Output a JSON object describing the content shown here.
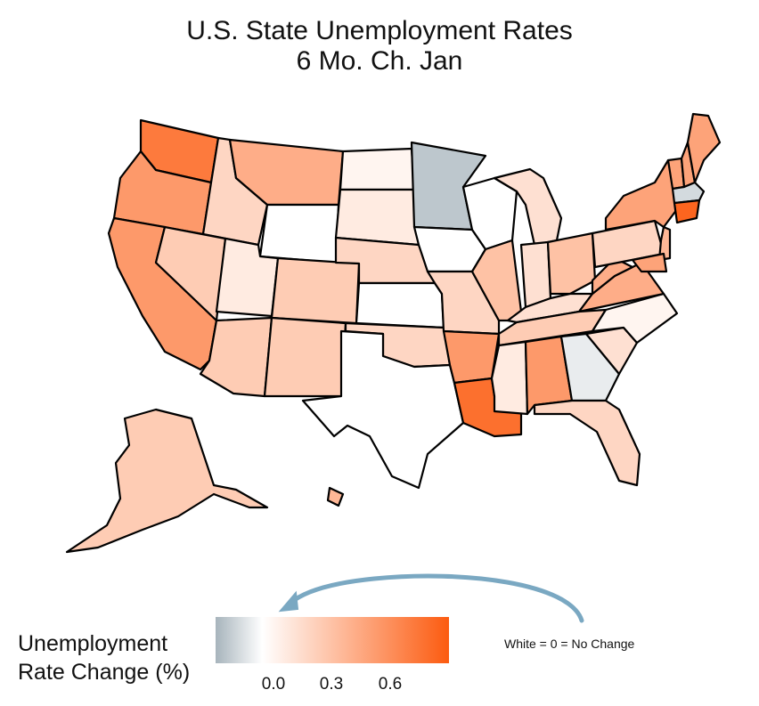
{
  "title_line1": "U.S. State Unemployment Rates",
  "title_line2": "6 Mo. Ch.   Jan",
  "legend": {
    "title_line1": "Unemployment",
    "title_line2": "Rate Change (%)",
    "ticks": [
      "0.0",
      "0.3",
      "0.6"
    ],
    "tick_values": [
      0.0,
      0.3,
      0.6
    ],
    "range": [
      -0.2,
      0.8
    ],
    "colors": {
      "negative": "#a7b4bc",
      "zero": "#ffffff",
      "positive": "#fc5b10"
    }
  },
  "note": "White = 0 = No Change",
  "arrow_color": "#7aa8c2",
  "states": [
    {
      "id": "WA",
      "change": 0.65
    },
    {
      "id": "OR",
      "change": 0.5
    },
    {
      "id": "CA",
      "change": 0.5
    },
    {
      "id": "ID",
      "change": 0.2
    },
    {
      "id": "NV",
      "change": 0.25
    },
    {
      "id": "MT",
      "change": 0.4
    },
    {
      "id": "WY",
      "change": 0.0
    },
    {
      "id": "UT",
      "change": 0.1
    },
    {
      "id": "CO",
      "change": 0.25
    },
    {
      "id": "AZ",
      "change": 0.25
    },
    {
      "id": "NM",
      "change": 0.25
    },
    {
      "id": "ND",
      "change": 0.05
    },
    {
      "id": "SD",
      "change": 0.1
    },
    {
      "id": "NE",
      "change": 0.2
    },
    {
      "id": "KS",
      "change": 0.0
    },
    {
      "id": "OK",
      "change": 0.2
    },
    {
      "id": "TX",
      "change": 0.0
    },
    {
      "id": "MN",
      "change": -0.15
    },
    {
      "id": "IA",
      "change": 0.0
    },
    {
      "id": "MO",
      "change": 0.2
    },
    {
      "id": "AR",
      "change": 0.5
    },
    {
      "id": "LA",
      "change": 0.7
    },
    {
      "id": "WI",
      "change": 0.0
    },
    {
      "id": "IL",
      "change": 0.3
    },
    {
      "id": "MI",
      "change": 0.15
    },
    {
      "id": "IN",
      "change": 0.15
    },
    {
      "id": "OH",
      "change": 0.3
    },
    {
      "id": "KY",
      "change": 0.15
    },
    {
      "id": "TN",
      "change": 0.25
    },
    {
      "id": "MS",
      "change": 0.1
    },
    {
      "id": "AL",
      "change": 0.5
    },
    {
      "id": "GA",
      "change": -0.05
    },
    {
      "id": "FL",
      "change": 0.2
    },
    {
      "id": "SC",
      "change": 0.15
    },
    {
      "id": "NC",
      "change": 0.05
    },
    {
      "id": "VA",
      "change": 0.4
    },
    {
      "id": "WV",
      "change": 0.4
    },
    {
      "id": "PA",
      "change": 0.2
    },
    {
      "id": "NY",
      "change": 0.45
    },
    {
      "id": "VT",
      "change": 0.45
    },
    {
      "id": "NH",
      "change": 0.45
    },
    {
      "id": "ME",
      "change": 0.45
    },
    {
      "id": "MA",
      "change": -0.1
    },
    {
      "id": "CT",
      "change": 0.75
    },
    {
      "id": "NJ",
      "change": 0.35
    },
    {
      "id": "MD",
      "change": 0.45
    },
    {
      "id": "AK",
      "change": 0.25
    },
    {
      "id": "HI",
      "change": 0.35
    }
  ]
}
